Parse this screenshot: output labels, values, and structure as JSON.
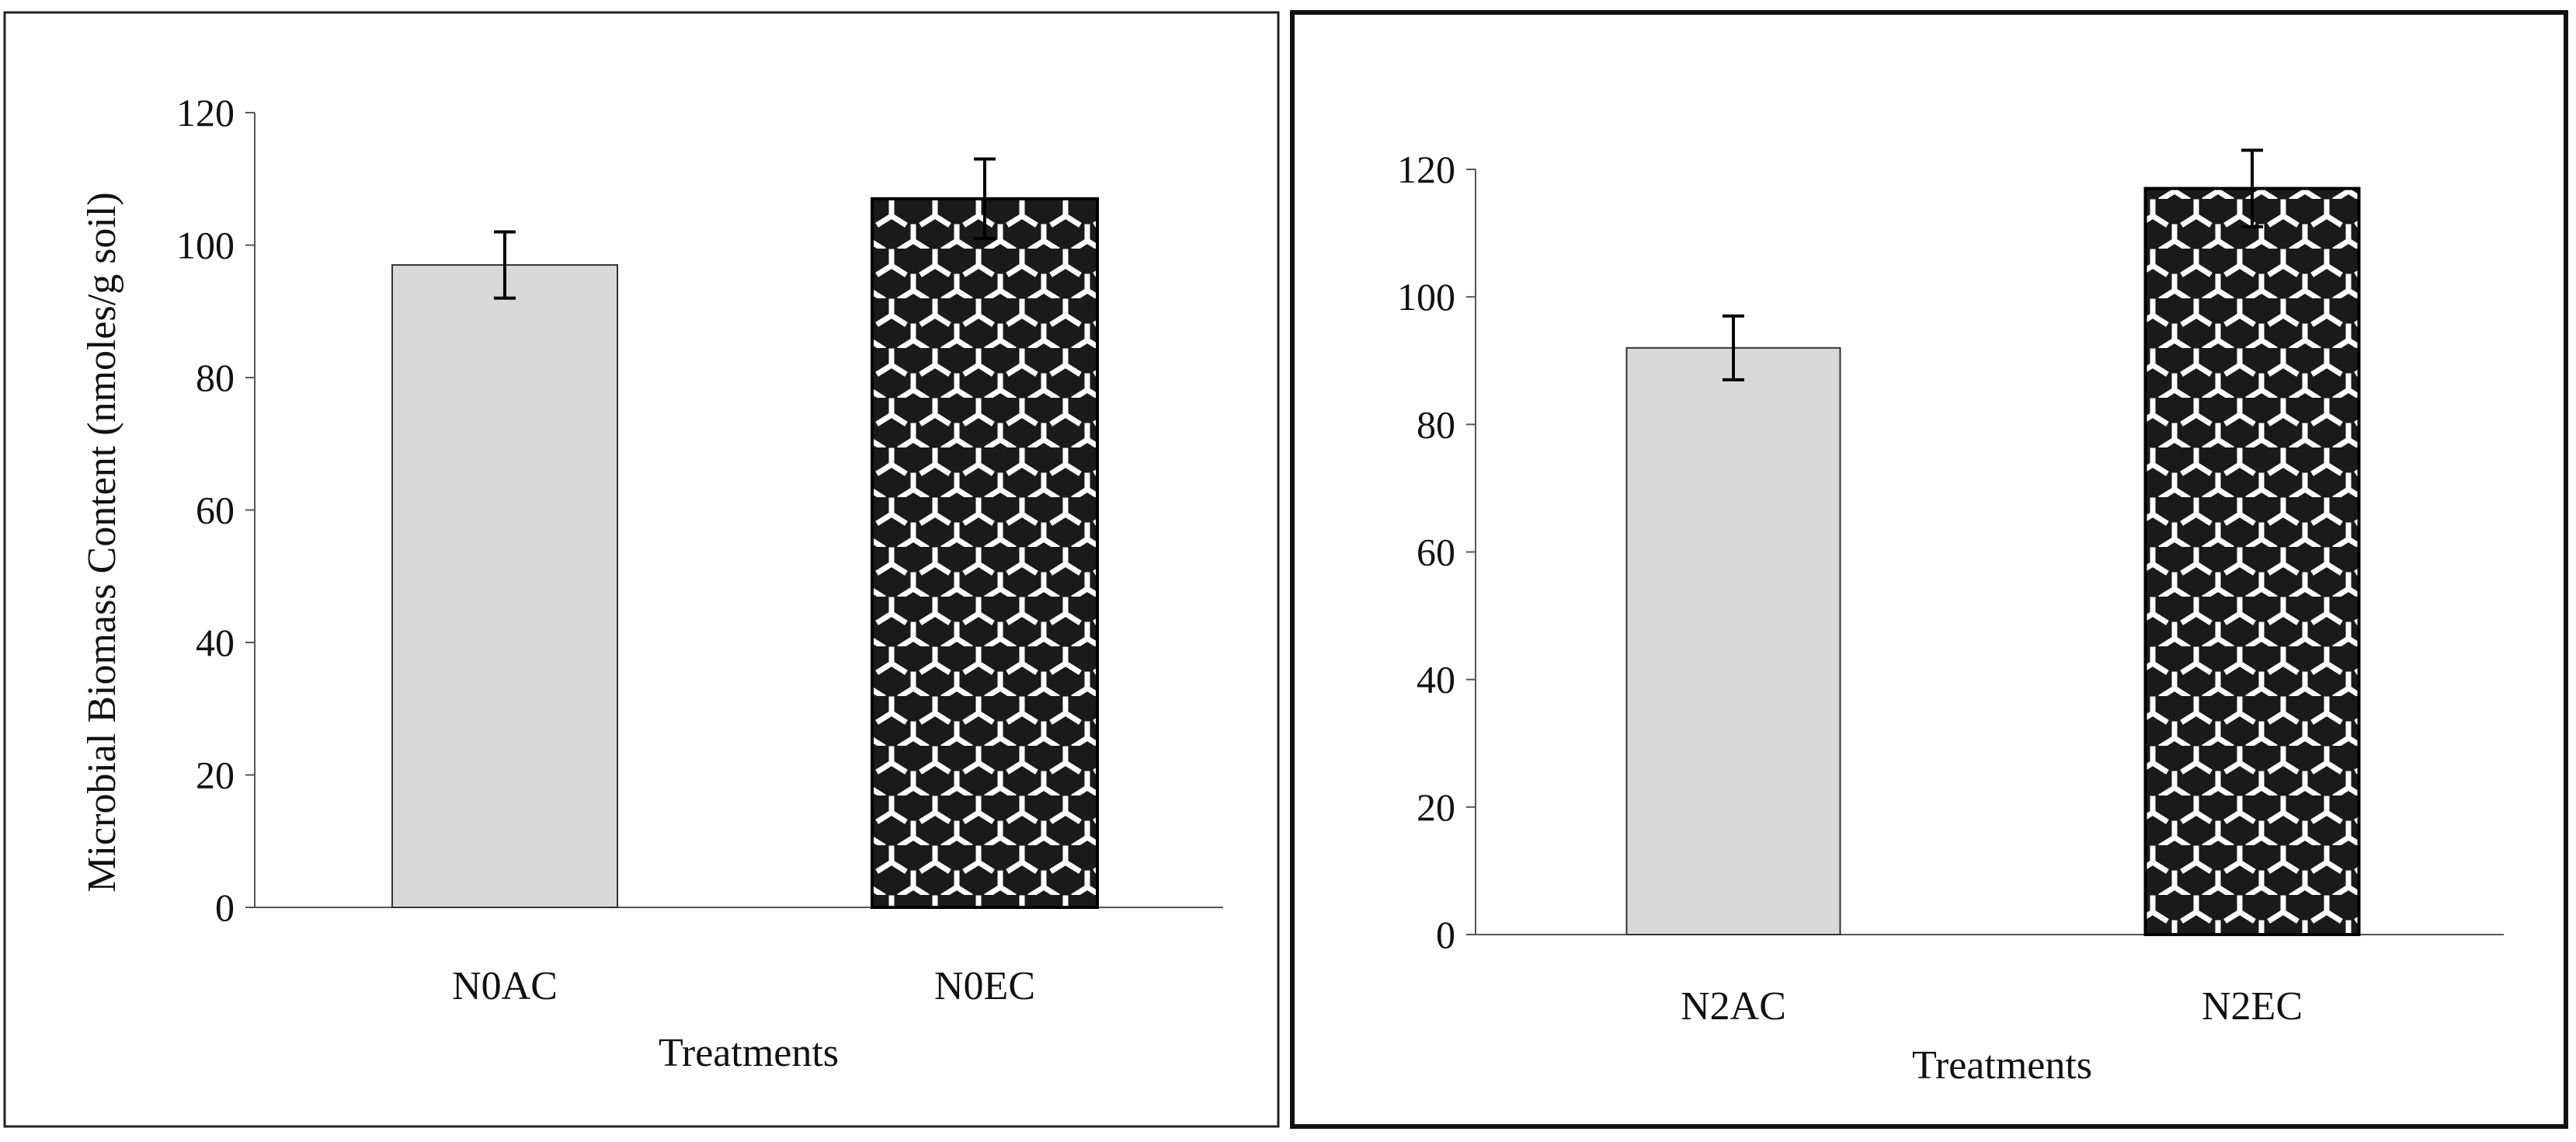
{
  "chart_data": [
    {
      "type": "bar",
      "title": "",
      "xlabel": "Treatments",
      "ylabel": "Microbial Biomass Content (nmoles/g soil)",
      "categories": [
        "N0AC",
        "N0EC"
      ],
      "values": [
        97,
        107
      ],
      "errors": [
        5,
        6
      ],
      "ylim": [
        0,
        120
      ],
      "yticks": [
        "0",
        "20",
        "40",
        "60",
        "80",
        "100",
        "120"
      ],
      "bar_styles": [
        "solid-light-gray",
        "black-white-tripod-pattern"
      ],
      "colors": [
        "#d9d9d9",
        "#1a1a1a"
      ],
      "grid": false,
      "legend": "none"
    },
    {
      "type": "bar",
      "title": "",
      "xlabel": "Treatments",
      "ylabel": "",
      "categories": [
        "N2AC",
        "N2EC"
      ],
      "values": [
        92,
        117
      ],
      "errors": [
        5,
        6
      ],
      "ylim": [
        0,
        120
      ],
      "yticks": [
        "0",
        "20",
        "40",
        "60",
        "80",
        "100",
        "120"
      ],
      "bar_styles": [
        "solid-light-gray",
        "black-white-tripod-pattern"
      ],
      "colors": [
        "#d9d9d9",
        "#1a1a1a"
      ],
      "grid": false,
      "legend": "none"
    }
  ]
}
